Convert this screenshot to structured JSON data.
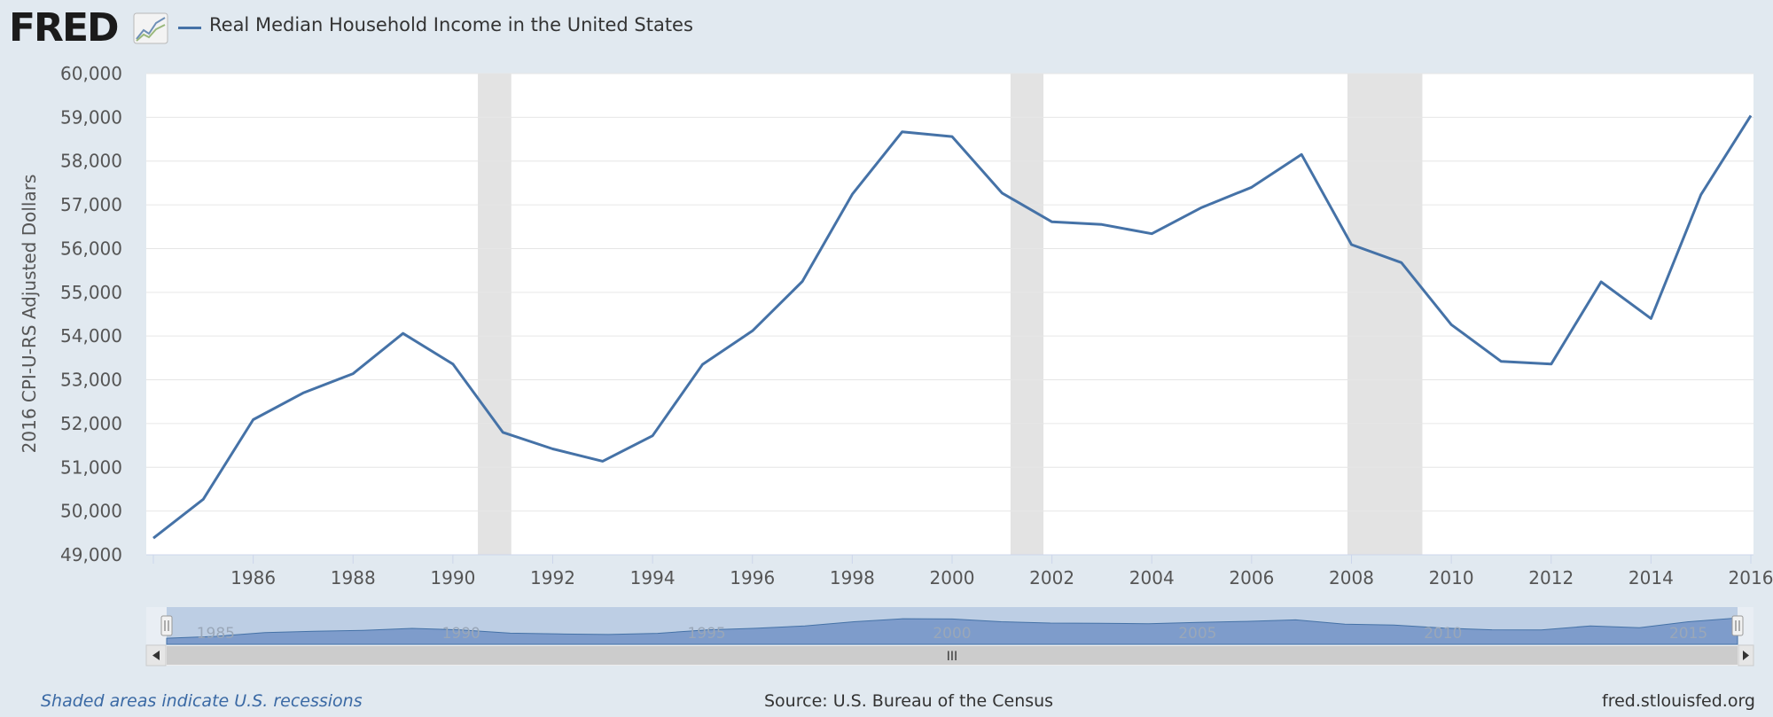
{
  "header": {
    "logo_text": "FRED",
    "logo_icon": "fred-chart-icon",
    "series_label": "Real Median Household Income in the United States"
  },
  "footer": {
    "recession_note": "Shaded areas indicate U.S. recessions",
    "source": "Source: U.S. Bureau of the Census",
    "site": "fred.stlouisfed.org"
  },
  "colors": {
    "series": "#4572a7",
    "background": "#e1e9f0",
    "plot": "#ffffff",
    "recession": "#e3e3e3"
  },
  "chart_data": {
    "type": "line",
    "ylabel": "2016 CPI-U-RS Adjusted Dollars",
    "xlabel": "",
    "ylim": [
      49000,
      60000
    ],
    "yticks": [
      "49,000",
      "50,000",
      "51,000",
      "52,000",
      "53,000",
      "54,000",
      "55,000",
      "56,000",
      "57,000",
      "58,000",
      "59,000",
      "60,000"
    ],
    "xticks": [
      "1986",
      "1988",
      "1990",
      "1992",
      "1994",
      "1996",
      "1998",
      "2000",
      "2002",
      "2004",
      "2006",
      "2008",
      "2010",
      "2012",
      "2014",
      "2016"
    ],
    "grid": true,
    "series": [
      {
        "name": "Real Median Household Income in the United States",
        "color": "#4572a7",
        "x": [
          1984,
          1985,
          1986,
          1987,
          1988,
          1989,
          1990,
          1991,
          1992,
          1993,
          1994,
          1995,
          1996,
          1997,
          1998,
          1999,
          2000,
          2001,
          2002,
          2003,
          2004,
          2005,
          2006,
          2007,
          2008,
          2009,
          2010,
          2011,
          2012,
          2013,
          2014,
          2015,
          2016
        ],
        "values": [
          49380,
          50270,
          52090,
          52700,
          53140,
          54060,
          53360,
          51800,
          51420,
          51140,
          51720,
          53350,
          54120,
          55250,
          57240,
          58670,
          58560,
          57270,
          56610,
          56550,
          56340,
          56940,
          57400,
          58150,
          56090,
          55680,
          54260,
          53420,
          53360,
          55240,
          54400,
          57230,
          59040
        ]
      }
    ],
    "recessions": [
      {
        "start": 1990.5,
        "end": 1991.17
      },
      {
        "start": 2001.17,
        "end": 2001.83
      },
      {
        "start": 2007.92,
        "end": 2009.42
      }
    ],
    "navigator": {
      "labels": [
        "1985",
        "1990",
        "1995",
        "2000",
        "2005",
        "2010",
        "2015"
      ],
      "scrollbar_grip": "III"
    }
  }
}
